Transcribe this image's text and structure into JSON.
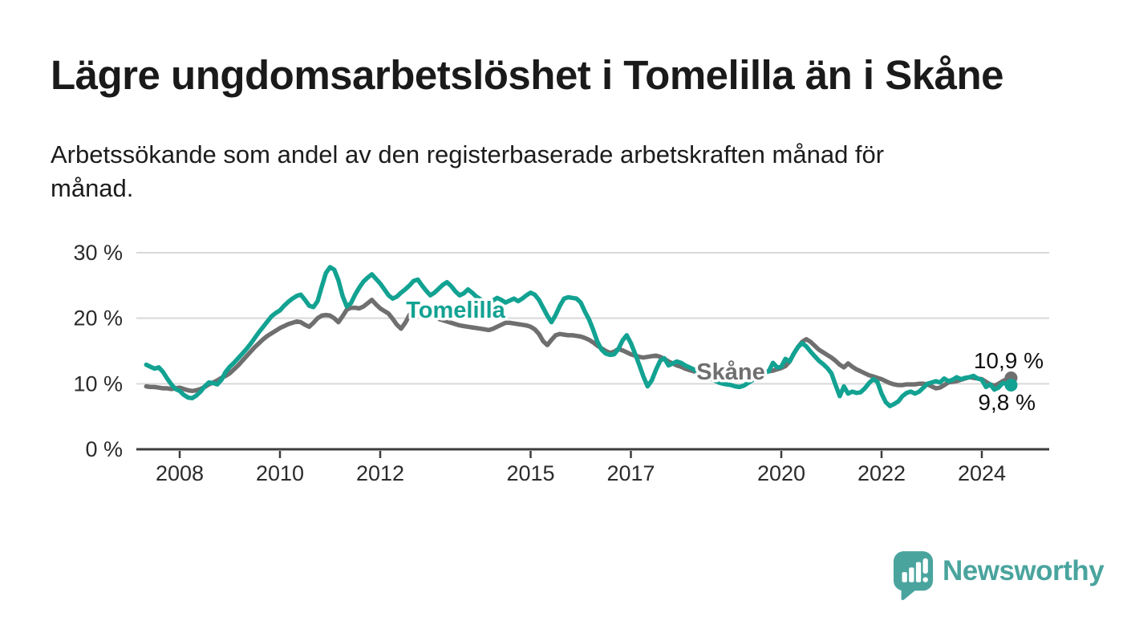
{
  "header": {
    "title": "Lägre ungdomsarbetslöshet i Tomelilla än i Skåne",
    "subtitle": "Arbetssökande som andel av den registerbaserade arbetskraften månad för månad."
  },
  "chart_data": {
    "type": "line",
    "title": "Lägre ungdomsarbetslöshet i Tomelilla än i Skåne",
    "xlabel": "",
    "ylabel": "",
    "unit": "%",
    "grid": "horizontal",
    "ylim": [
      0,
      30
    ],
    "x_start_year": 2007.3333,
    "points_per_year": 12,
    "x_ticks": [
      2008,
      2010,
      2012,
      2015,
      2017,
      2020,
      2022,
      2024
    ],
    "y_ticks": [
      {
        "value": 0,
        "label": "0 %"
      },
      {
        "value": 10,
        "label": "10 %"
      },
      {
        "value": 20,
        "label": "20 %"
      },
      {
        "value": 30,
        "label": "30 %"
      }
    ],
    "series": [
      {
        "id": "skane",
        "name": "Skåne",
        "color": "#6f6f6f",
        "end_value": 10.9,
        "end_label": "10,9 %",
        "values": [
          9.6,
          9.5,
          9.5,
          9.4,
          9.3,
          9.3,
          9.2,
          9.3,
          9.4,
          9.2,
          9.0,
          8.9,
          9.0,
          9.2,
          9.5,
          9.9,
          10.2,
          10.5,
          10.9,
          11.2,
          11.6,
          12.2,
          12.8,
          13.5,
          14.2,
          14.9,
          15.6,
          16.2,
          16.8,
          17.3,
          17.7,
          18.1,
          18.5,
          18.8,
          19.1,
          19.3,
          19.5,
          19.4,
          19.0,
          18.7,
          19.3,
          20.0,
          20.4,
          20.5,
          20.4,
          20.0,
          19.4,
          20.3,
          21.3,
          21.6,
          21.6,
          21.5,
          21.8,
          22.3,
          22.8,
          22.1,
          21.5,
          21.1,
          20.7,
          19.9,
          19.0,
          18.4,
          19.3,
          20.5,
          21.3,
          21.1,
          21.0,
          20.8,
          20.5,
          20.2,
          19.9,
          19.7,
          19.5,
          19.3,
          19.1,
          18.9,
          18.8,
          18.7,
          18.6,
          18.5,
          18.4,
          18.3,
          18.2,
          18.4,
          18.7,
          19.0,
          19.3,
          19.3,
          19.2,
          19.1,
          19.0,
          18.9,
          18.7,
          18.3,
          17.6,
          16.5,
          15.9,
          16.7,
          17.4,
          17.6,
          17.5,
          17.4,
          17.4,
          17.3,
          17.2,
          17.0,
          16.7,
          16.3,
          15.8,
          15.4,
          15.0,
          14.7,
          14.9,
          15.3,
          15.1,
          14.8,
          14.5,
          14.3,
          14.1,
          14.0,
          14.1,
          14.2,
          14.3,
          14.1,
          13.8,
          13.4,
          13.1,
          12.8,
          12.6,
          12.3,
          12.1,
          11.9,
          11.7,
          11.6,
          11.5,
          11.4,
          11.3,
          11.2,
          11.1,
          11.0,
          10.9,
          10.8,
          10.8,
          10.9,
          11.0,
          11.2,
          11.4,
          11.5,
          11.7,
          11.9,
          12.0,
          12.2,
          12.4,
          12.7,
          13.4,
          14.6,
          15.6,
          16.4,
          16.8,
          16.4,
          15.8,
          15.2,
          14.8,
          14.4,
          14.0,
          13.5,
          12.9,
          12.5,
          13.1,
          12.6,
          12.2,
          11.9,
          11.6,
          11.3,
          11.1,
          10.9,
          10.7,
          10.4,
          10.1,
          9.9,
          9.8,
          9.8,
          9.9,
          9.9,
          9.9,
          10.0,
          10.0,
          9.9,
          9.6,
          9.3,
          9.4,
          9.8,
          10.2,
          10.3,
          10.4,
          10.6,
          10.8,
          11.0,
          10.9,
          10.8,
          10.7,
          10.3,
          9.9,
          9.7,
          10.0,
          10.4,
          10.7,
          10.9
        ]
      },
      {
        "id": "tomelilla",
        "name": "Tomelilla",
        "color": "#12a292",
        "end_value": 9.8,
        "end_label": "9,8 %",
        "values": [
          12.9,
          12.6,
          12.3,
          12.5,
          11.8,
          10.8,
          9.9,
          9.2,
          8.9,
          8.3,
          7.9,
          7.8,
          8.2,
          8.8,
          9.6,
          10.2,
          10.1,
          9.9,
          10.6,
          11.8,
          12.6,
          13.2,
          13.9,
          14.6,
          15.3,
          16.1,
          17.0,
          17.9,
          18.7,
          19.5,
          20.3,
          20.8,
          21.2,
          21.9,
          22.5,
          23.0,
          23.4,
          23.6,
          22.8,
          21.9,
          21.7,
          22.6,
          24.8,
          26.9,
          27.8,
          27.4,
          25.8,
          23.4,
          21.8,
          22.3,
          23.6,
          24.7,
          25.6,
          26.2,
          26.7,
          26.0,
          25.3,
          24.4,
          23.5,
          23.0,
          23.3,
          23.9,
          24.4,
          25.0,
          25.7,
          25.9,
          25.0,
          24.2,
          23.5,
          23.9,
          24.5,
          25.1,
          25.5,
          24.9,
          24.1,
          23.5,
          23.8,
          24.4,
          23.9,
          23.3,
          22.9,
          22.5,
          22.3,
          22.7,
          23.1,
          22.8,
          22.4,
          22.7,
          23.0,
          22.6,
          23.0,
          23.5,
          23.9,
          23.6,
          22.8,
          21.6,
          20.4,
          19.4,
          20.5,
          21.9,
          23.0,
          23.2,
          23.1,
          23.0,
          22.4,
          21.0,
          19.8,
          18.2,
          16.4,
          15.2,
          14.6,
          14.4,
          14.5,
          15.3,
          16.6,
          17.4,
          16.2,
          14.6,
          12.9,
          11.1,
          9.6,
          10.5,
          12.1,
          13.5,
          13.9,
          12.8,
          13.1,
          13.4,
          13.2,
          12.8,
          12.5,
          12.2,
          11.8,
          11.5,
          11.1,
          10.8,
          10.5,
          10.2,
          10.0,
          9.9,
          9.8,
          9.6,
          9.5,
          9.7,
          10.1,
          10.5,
          10.9,
          11.3,
          11.7,
          11.9,
          13.2,
          12.5,
          12.6,
          13.8,
          13.4,
          14.6,
          15.6,
          16.2,
          15.7,
          14.9,
          14.2,
          13.5,
          13.0,
          12.4,
          11.6,
          9.8,
          8.1,
          9.6,
          8.5,
          8.8,
          8.6,
          8.7,
          9.3,
          10.1,
          10.7,
          10.3,
          8.5,
          7.2,
          6.6,
          6.9,
          7.3,
          8.1,
          8.6,
          8.8,
          8.5,
          8.8,
          9.4,
          10.0,
          10.2,
          10.4,
          10.2,
          10.8,
          10.4,
          10.6,
          11.0,
          10.7,
          10.9,
          11.0,
          11.2,
          10.8,
          10.6,
          9.5,
          9.9,
          9.1,
          9.4,
          10.1,
          10.0,
          9.8
        ]
      }
    ]
  },
  "annotations": {
    "tomelilla_label": "Tomelilla",
    "skane_label": "Skåne",
    "skane_end": "10,9 %",
    "tomelilla_end": "9,8 %"
  },
  "footer": {
    "brand": "Newsworthy"
  },
  "colors": {
    "tomelilla": "#12a292",
    "skane": "#6f6f6f",
    "grid": "#d9d9d9",
    "axis": "#3d3d3d",
    "text": "#1a1a1a",
    "brand_teal": "#4aa49e"
  }
}
